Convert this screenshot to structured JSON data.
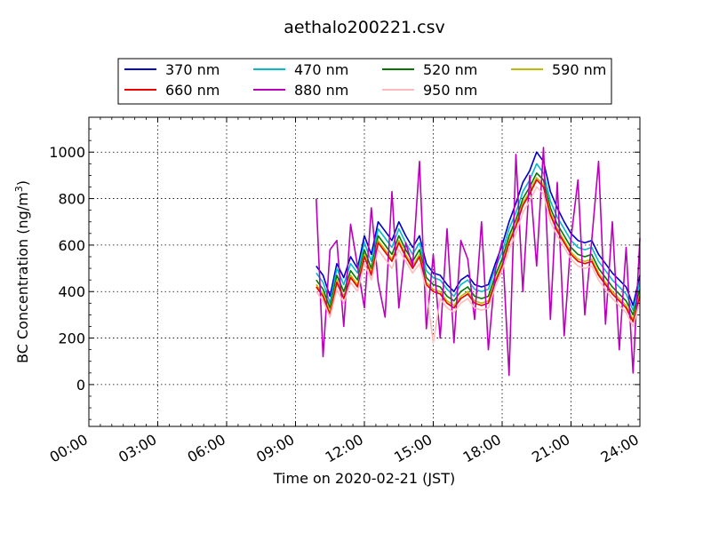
{
  "chart_data": {
    "type": "line",
    "title": "aethalo200221.csv",
    "xlabel": "Time on 2020-02-21 (JST)",
    "ylabel": "BC Concentration (ng/m",
    "ylabel_sup": "3",
    "ylabel_tail": ")",
    "xlim": [
      0,
      24
    ],
    "ylim": [
      -180,
      1150
    ],
    "xticks": [
      0,
      3,
      6,
      9,
      12,
      15,
      18,
      21,
      24
    ],
    "xticklabels": [
      "00:00",
      "03:00",
      "06:00",
      "09:00",
      "12:00",
      "15:00",
      "18:00",
      "21:00",
      "24:00"
    ],
    "yticks": [
      0,
      200,
      400,
      600,
      800,
      1000
    ],
    "yticklabels": [
      "0",
      "200",
      "400",
      "600",
      "800",
      "1000"
    ],
    "grid": true,
    "legend_position": "top, outside plot, 4 columns",
    "x": [
      9.9,
      10.2,
      10.5,
      10.8,
      11.1,
      11.4,
      11.7,
      12.0,
      12.3,
      12.6,
      12.9,
      13.2,
      13.5,
      13.8,
      14.1,
      14.4,
      14.7,
      15.0,
      15.3,
      15.6,
      15.9,
      16.2,
      16.5,
      16.8,
      17.1,
      17.4,
      17.7,
      18.0,
      18.3,
      18.6,
      18.9,
      19.2,
      19.5,
      19.8,
      20.1,
      20.4,
      20.7,
      21.0,
      21.3,
      21.6,
      21.9,
      22.2,
      22.5,
      22.8,
      23.1,
      23.4,
      23.7,
      24.0
    ],
    "series": [
      {
        "name": "370 nm",
        "color": "#0000cc",
        "values": [
          510,
          470,
          380,
          520,
          460,
          550,
          500,
          640,
          560,
          700,
          660,
          620,
          700,
          640,
          590,
          640,
          520,
          480,
          470,
          430,
          400,
          450,
          470,
          430,
          420,
          430,
          520,
          600,
          700,
          780,
          870,
          920,
          1000,
          960,
          830,
          760,
          700,
          650,
          620,
          610,
          620,
          560,
          520,
          480,
          450,
          420,
          340,
          470
        ]
      },
      {
        "name": "470 nm",
        "color": "#00bbcc",
        "values": [
          480,
          440,
          350,
          500,
          430,
          520,
          480,
          610,
          530,
          670,
          630,
          590,
          670,
          610,
          560,
          610,
          490,
          460,
          450,
          410,
          380,
          430,
          450,
          410,
          400,
          410,
          500,
          570,
          670,
          740,
          830,
          880,
          950,
          910,
          790,
          720,
          670,
          620,
          590,
          580,
          590,
          530,
          490,
          450,
          420,
          390,
          320,
          440
        ]
      },
      {
        "name": "520 nm",
        "color": "#007700",
        "values": [
          450,
          410,
          330,
          470,
          400,
          490,
          450,
          580,
          500,
          640,
          600,
          560,
          640,
          580,
          530,
          580,
          460,
          430,
          420,
          380,
          360,
          400,
          420,
          380,
          370,
          380,
          470,
          540,
          640,
          710,
          800,
          850,
          910,
          880,
          760,
          690,
          640,
          590,
          560,
          550,
          560,
          500,
          460,
          420,
          390,
          360,
          300,
          410
        ]
      },
      {
        "name": "590 nm",
        "color": "#bbbb00",
        "values": [
          430,
          390,
          310,
          450,
          380,
          470,
          430,
          560,
          480,
          620,
          580,
          540,
          620,
          560,
          510,
          560,
          440,
          410,
          400,
          360,
          340,
          380,
          400,
          360,
          350,
          360,
          450,
          520,
          620,
          690,
          780,
          830,
          890,
          860,
          740,
          670,
          620,
          570,
          540,
          530,
          540,
          480,
          440,
          400,
          370,
          340,
          280,
          390
        ]
      },
      {
        "name": "660 nm",
        "color": "#ee0000",
        "values": [
          420,
          380,
          300,
          440,
          370,
          460,
          420,
          550,
          470,
          610,
          570,
          530,
          610,
          550,
          500,
          550,
          430,
          400,
          390,
          350,
          330,
          370,
          390,
          350,
          340,
          350,
          440,
          510,
          610,
          680,
          770,
          820,
          880,
          850,
          730,
          660,
          610,
          560,
          530,
          520,
          530,
          470,
          430,
          390,
          360,
          330,
          270,
          380
        ]
      },
      {
        "name": "880 nm",
        "color": "#bb00bb",
        "values": [
          800,
          120,
          580,
          620,
          250,
          690,
          510,
          330,
          760,
          440,
          290,
          830,
          330,
          610,
          510,
          960,
          240,
          560,
          200,
          670,
          180,
          620,
          540,
          280,
          700,
          150,
          490,
          620,
          40,
          990,
          400,
          900,
          510,
          1020,
          280,
          870,
          210,
          630,
          880,
          300,
          620,
          960,
          260,
          700,
          150,
          590,
          50,
          630
        ]
      },
      {
        "name": "950 nm",
        "color": "#ffbbbb",
        "values": [
          400,
          360,
          290,
          410,
          350,
          440,
          400,
          520,
          450,
          580,
          540,
          500,
          580,
          530,
          480,
          520,
          410,
          180,
          370,
          330,
          310,
          350,
          370,
          330,
          320,
          330,
          420,
          490,
          580,
          650,
          740,
          790,
          850,
          820,
          700,
          640,
          590,
          540,
          510,
          500,
          510,
          450,
          410,
          370,
          340,
          310,
          250,
          360
        ]
      }
    ]
  }
}
